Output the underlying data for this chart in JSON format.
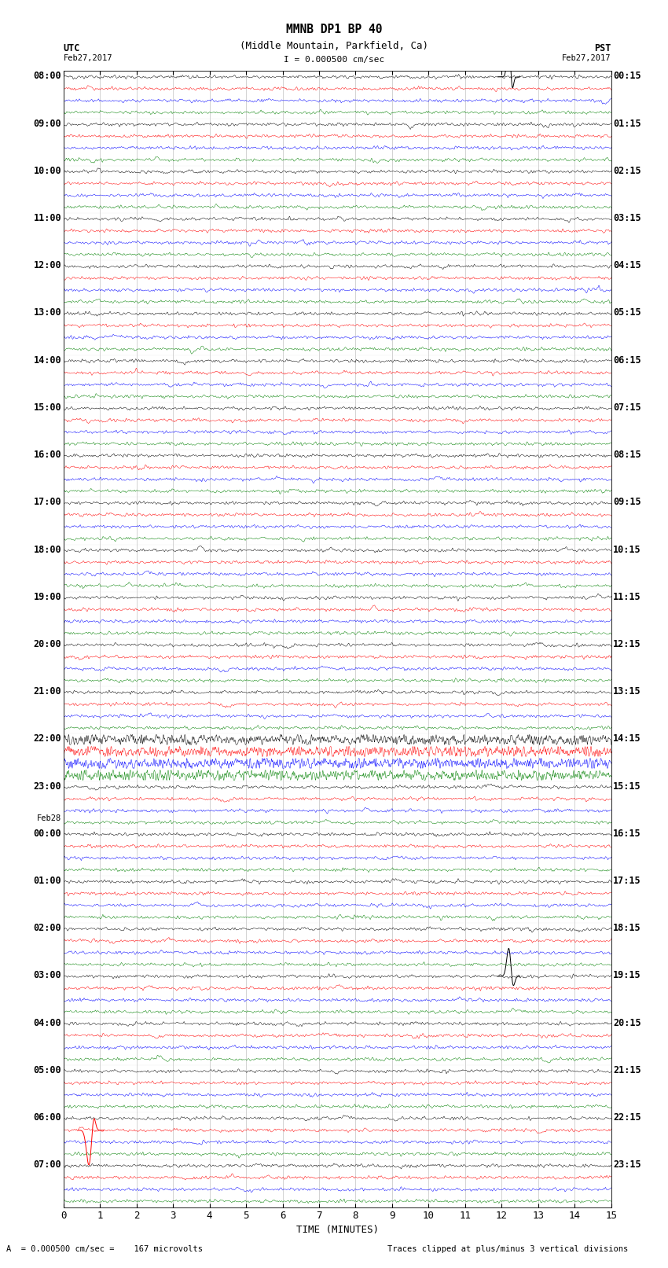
{
  "title_line1": "MMNB DP1 BP 40",
  "title_line2": "(Middle Mountain, Parkfield, Ca)",
  "scale_label": "I = 0.000500 cm/sec",
  "utc_label_line1": "UTC",
  "utc_label_line2": "Feb27,2017",
  "pst_label_line1": "PST",
  "pst_label_line2": "Feb27,2017",
  "xlabel": "TIME (MINUTES)",
  "footer_left": "A  = 0.000500 cm/sec =    167 microvolts",
  "footer_right": "Traces clipped at plus/minus 3 vertical divisions",
  "left_times": [
    "08:00",
    "09:00",
    "10:00",
    "11:00",
    "12:00",
    "13:00",
    "14:00",
    "15:00",
    "16:00",
    "17:00",
    "18:00",
    "19:00",
    "20:00",
    "21:00",
    "22:00",
    "23:00",
    "Feb28\n00:00",
    "01:00",
    "02:00",
    "03:00",
    "04:00",
    "05:00",
    "06:00",
    "07:00"
  ],
  "right_times": [
    "00:15",
    "01:15",
    "02:15",
    "03:15",
    "04:15",
    "05:15",
    "06:15",
    "07:15",
    "08:15",
    "09:15",
    "10:15",
    "11:15",
    "12:15",
    "13:15",
    "14:15",
    "15:15",
    "16:15",
    "17:15",
    "18:15",
    "19:15",
    "20:15",
    "21:15",
    "22:15",
    "23:15"
  ],
  "n_rows": 24,
  "n_traces_per_row": 4,
  "trace_colors": [
    "black",
    "red",
    "blue",
    "green"
  ],
  "bg_color": "white",
  "noise_scale": 0.06,
  "figsize": [
    8.5,
    16.13
  ],
  "dpi": 100,
  "spike1_row": 0,
  "spike1_trace": 0,
  "spike1_minute": 12.2,
  "spike1_amp": 3.0,
  "spike2_row": 19,
  "spike2_trace": 0,
  "spike2_minute": 12.2,
  "spike2_amp": 2.5,
  "spike3_row": 22,
  "spike3_trace": 1,
  "spike3_minute": 0.7,
  "spike3_amp": -3.0,
  "noisy_row": 14,
  "noisy_trace": -1,
  "eq_row": 19,
  "eq_minute": 12.2
}
